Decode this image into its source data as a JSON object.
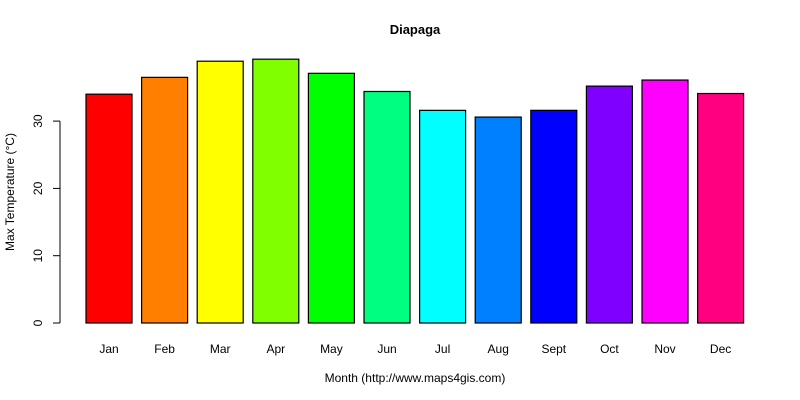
{
  "chart_data": {
    "type": "bar",
    "title": "Diapaga",
    "xlabel": "Month (http://www.maps4gis.com)",
    "ylabel": "Max Temperature (°C)",
    "categories": [
      "Jan",
      "Feb",
      "Mar",
      "Apr",
      "May",
      "Jun",
      "Jul",
      "Aug",
      "Sept",
      "Oct",
      "Nov",
      "Dec"
    ],
    "values": [
      34.0,
      36.5,
      38.9,
      39.2,
      37.1,
      34.4,
      31.6,
      30.6,
      31.6,
      35.2,
      36.1,
      34.1
    ],
    "colors": [
      "#FF0000",
      "#FF8000",
      "#FFFF00",
      "#80FF00",
      "#00FF00",
      "#00FF80",
      "#00FFFF",
      "#0080FF",
      "#0000FF",
      "#8000FF",
      "#FF00FF",
      "#FF0080"
    ],
    "yticks": [
      0,
      10,
      20,
      30
    ],
    "ylim": [
      0,
      40
    ],
    "grid": false,
    "legend": "none"
  }
}
